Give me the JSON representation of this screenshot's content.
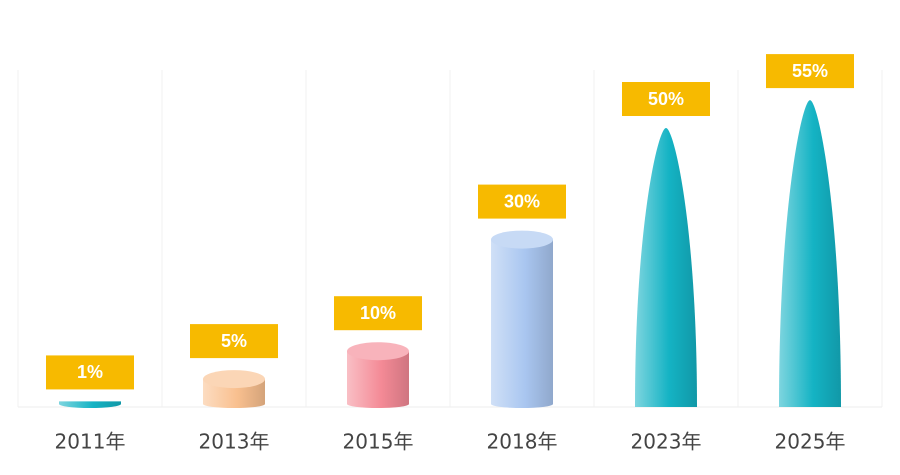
{
  "chart_data": {
    "type": "bar",
    "categories": [
      "2011年",
      "2013年",
      "2015年",
      "2018年",
      "2023年",
      "2025年"
    ],
    "values": [
      1,
      5,
      10,
      30,
      50,
      55
    ],
    "value_labels": [
      "1%",
      "5%",
      "10%",
      "30%",
      "50%",
      "55%"
    ],
    "colors": [
      "#14b3c4",
      "#f9c08f",
      "#f48a96",
      "#a9c6f0",
      "#14b3c4",
      "#14b3c4"
    ],
    "shapes": [
      "cylinder",
      "cylinder",
      "cylinder",
      "cylinder",
      "cone",
      "cone"
    ],
    "label_color": "#f7ba00"
  }
}
